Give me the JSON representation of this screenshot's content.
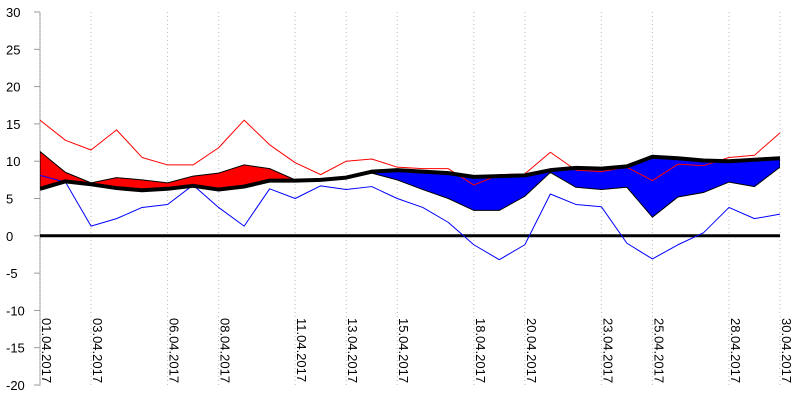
{
  "chart_data": {
    "type": "line",
    "categories": [
      "01.04.2017",
      null,
      "03.04.2017",
      null,
      null,
      "06.04.2017",
      null,
      "08.04.2017",
      null,
      null,
      "11.04.2017",
      null,
      "13.04.2017",
      null,
      "15.04.2017",
      null,
      null,
      "18.04.2017",
      null,
      "20.04.2017",
      null,
      null,
      "23.04.2017",
      null,
      "25.04.2017",
      null,
      null,
      "28.04.2017",
      null,
      "30.04.2017"
    ],
    "series": [
      {
        "color": "#ff0000",
        "style": "line",
        "width": 1,
        "values": [
          15.5,
          12.8,
          11.5,
          14.2,
          10.5,
          9.5,
          9.5,
          11.8,
          15.5,
          12.2,
          9.8,
          8.2,
          10.0,
          10.3,
          9.2,
          9.0,
          9.0,
          6.8,
          8.2,
          8.3,
          11.2,
          8.8,
          8.6,
          9.2,
          7.4,
          9.6,
          9.4,
          10.5,
          10.8,
          13.8
        ]
      },
      {
        "color": "#0000ff",
        "style": "line",
        "width": 1,
        "values": [
          8.1,
          7.2,
          1.3,
          2.3,
          3.8,
          4.2,
          6.8,
          3.8,
          1.3,
          6.3,
          5.0,
          6.7,
          6.2,
          6.6,
          5.0,
          3.8,
          1.8,
          -1.2,
          -3.2,
          -1.2,
          5.6,
          4.2,
          3.9,
          -1.0,
          -3.1,
          -1.2,
          0.4,
          3.8,
          2.3,
          2.9
        ]
      },
      {
        "color": "#000000",
        "style": "band",
        "width": 1,
        "values": [
          11.3,
          8.5,
          7.1,
          7.8,
          7.5,
          7.1,
          8.0,
          8.4,
          9.5,
          9.0,
          7.5,
          7.5,
          7.8,
          8.4,
          7.5,
          6.2,
          5.0,
          3.4,
          3.4,
          5.3,
          8.5,
          6.5,
          6.2,
          6.5,
          2.5,
          5.2,
          5.8,
          7.2,
          6.6,
          9.2
        ]
      },
      {
        "color": "#000000",
        "style": "line",
        "width": 4,
        "values": [
          6.3,
          7.3,
          6.9,
          6.4,
          6.1,
          6.3,
          6.7,
          6.2,
          6.6,
          7.4,
          7.4,
          7.5,
          7.8,
          8.6,
          8.8,
          8.6,
          8.4,
          7.9,
          8.0,
          8.1,
          8.8,
          9.1,
          9.0,
          9.3,
          10.6,
          10.4,
          10.1,
          10.0,
          10.2,
          10.4
        ]
      }
    ],
    "band_colors": {
      "above": "#ff0000",
      "below": "#0000ff"
    },
    "ylim": [
      -20,
      30
    ],
    "yticks": [
      -20,
      -15,
      -10,
      -5,
      0,
      5,
      10,
      15,
      20,
      25,
      30
    ],
    "grid": true
  }
}
